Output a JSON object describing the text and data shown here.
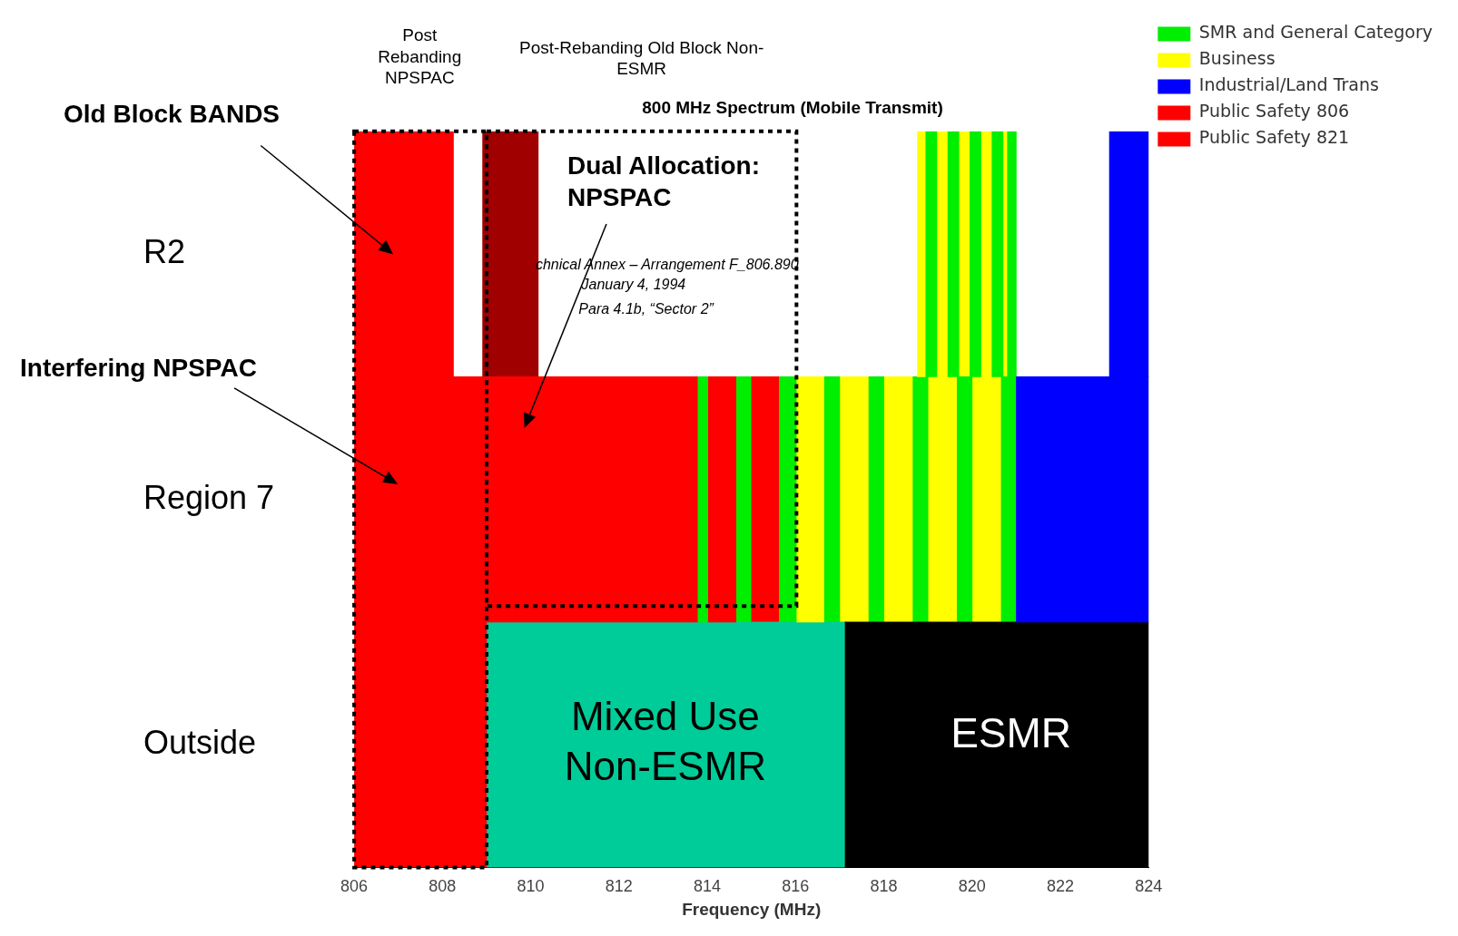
{
  "chart_data": {
    "type": "bar",
    "orientation": "horizontal",
    "title": "800 MHz Spectrum (Mobile Transmit)",
    "xlabel": "Frequency (MHz)",
    "categories": [
      "R2",
      "Region 7",
      "Outside"
    ],
    "xlim": [
      806,
      824
    ],
    "xticks": [
      806,
      808,
      810,
      812,
      814,
      816,
      818,
      820,
      822,
      824
    ],
    "grid": false,
    "legend": "right",
    "annotations": [
      "Old Block BANDS",
      "Interfering NPSPAC",
      "Post Rebanding NPSPAC",
      "Post-Rebanding Old Block Non-ESMR",
      "Dual Allocation: NPSPAC",
      "chnical Annex – Arrangement F_806.890",
      "January 4, 1994",
      "Para 4.1b, “Sector 2”",
      "Mixed Use Non-ESMR",
      "ESMR"
    ],
    "series": [
      {
        "name": "SMR and General Category",
        "color": "#00ee00",
        "values": [
          0.25,
          0.22,
          null
        ],
        "base": [
          818.95,
          813.79,
          null
        ]
      },
      {
        "name": "Business",
        "color": "#ffff00",
        "values": [
          0.19,
          0.61,
          null
        ],
        "base": [
          818.76,
          816.03,
          null
        ]
      },
      {
        "name": "Industrial/Land Trans",
        "color": "#0000ff",
        "values": [
          0.89,
          3,
          null
        ],
        "base": [
          823.11,
          821,
          null
        ]
      },
      {
        "name": "Public Safety 806",
        "color": "#ff0000",
        "values": [
          2.25,
          7.79,
          3
        ],
        "base": [
          806,
          806,
          806
        ]
      },
      {
        "name": "Public Safety 821",
        "color": "#ff0000",
        "values": [
          null,
          0.64,
          null
        ],
        "base": [
          null,
          814.01,
          null
        ]
      },
      {
        "color": "#a00000",
        "values": [
          1.26,
          null,
          null
        ],
        "base": [
          808.91,
          null,
          null
        ]
      },
      {
        "color": "#00cc99",
        "values": [
          null,
          null,
          8.11
        ],
        "base": [
          null,
          null,
          809
        ]
      },
      {
        "color": "#000000",
        "values": [
          null,
          null,
          6.89
        ],
        "base": [
          null,
          null,
          817.11
        ]
      },
      {
        "color": "#00ee00",
        "values": [
          0.25,
          0.34,
          null
        ],
        "base": [
          819.45,
          814.65,
          null
        ]
      },
      {
        "color": "#00ee00",
        "values": [
          0.25,
          0.4,
          null
        ],
        "base": [
          819.95,
          815.63,
          null
        ]
      },
      {
        "color": "#00ee00",
        "values": [
          0.25,
          0.36,
          null
        ],
        "base": [
          820.45,
          816.64,
          null
        ]
      },
      {
        "color": "#00ee00",
        "values": [
          0.2,
          0.34,
          null
        ],
        "base": [
          820.8,
          817.66,
          null
        ]
      },
      {
        "color": "#00ee00",
        "values": [
          null,
          0.34,
          null
        ],
        "base": [
          null,
          818.66,
          null
        ]
      },
      {
        "color": "#00ee00",
        "values": [
          null,
          0.34,
          null
        ],
        "base": [
          null,
          819.66,
          null
        ]
      },
      {
        "color": "#00ee00",
        "values": [
          null,
          0.34,
          null
        ],
        "base": [
          null,
          820.66,
          null
        ]
      },
      {
        "color": "#ffff00",
        "values": [
          0.25,
          0.66,
          null
        ],
        "base": [
          819.2,
          817.0,
          null
        ]
      },
      {
        "color": "#ffff00",
        "values": [
          0.25,
          0.66,
          null
        ],
        "base": [
          819.7,
          818.0,
          null
        ]
      },
      {
        "color": "#ffff00",
        "values": [
          0.25,
          0.66,
          null
        ],
        "base": [
          820.2,
          819.0,
          null
        ]
      },
      {
        "color": "#ffff00",
        "values": [
          0.1,
          0.66,
          null
        ],
        "base": [
          820.7,
          820.0,
          null
        ]
      },
      {
        "color": "#ff0000",
        "values": [
          null,
          0.64,
          null
        ],
        "base": [
          null,
          814.99,
          null
        ]
      }
    ]
  }
}
